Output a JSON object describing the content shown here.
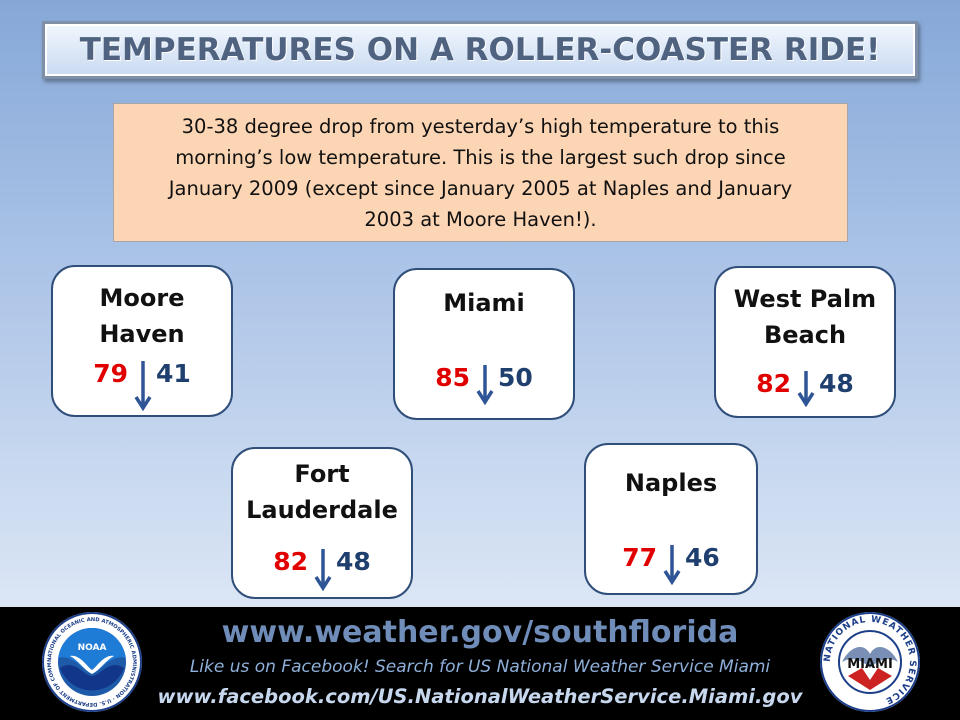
{
  "title": "TEMPERATURES ON A ROLLER-COASTER RIDE!",
  "info_lines": [
    "30-38 degree drop from yesterday’s high temperature to this",
    "morning’s low temperature. This is the largest such drop since",
    "January 2009 (except since January 2005 at Naples and January",
    "2003 at Moore Haven!)."
  ],
  "cities": [
    {
      "name_lines": [
        "Moore",
        "Haven"
      ],
      "high": "79",
      "low": "41"
    },
    {
      "name_lines": [
        "Miami"
      ],
      "high": "85",
      "low": "50"
    },
    {
      "name_lines": [
        "West Palm",
        "Beach"
      ],
      "high": "82",
      "low": "48"
    },
    {
      "name_lines": [
        "Fort",
        "Lauderdale"
      ],
      "high": "82",
      "low": "48"
    },
    {
      "name_lines": [
        "Naples"
      ],
      "high": "77",
      "low": "46"
    }
  ],
  "colors": {
    "high": "#e00000",
    "low": "#1f3f6e",
    "arrow": "#2f5597"
  },
  "footer": {
    "website": "www.weather.gov/southflorida",
    "facebook_line": "Like us on Facebook! Search for US National Weather Service Miami",
    "facebook_url": "www.facebook.com/US.NationalWeatherService.Miami.gov"
  },
  "logos": {
    "noaa": {
      "center_text": "NOAA",
      "ring_text": "NATIONAL OCEANIC AND ATMOSPHERIC ADMINISTRATION · U.S. DEPARTMENT OF COMMERCE"
    },
    "nws": {
      "center_text": "MIAMI",
      "ring_text": "NATIONAL WEATHER SERVICE"
    }
  }
}
